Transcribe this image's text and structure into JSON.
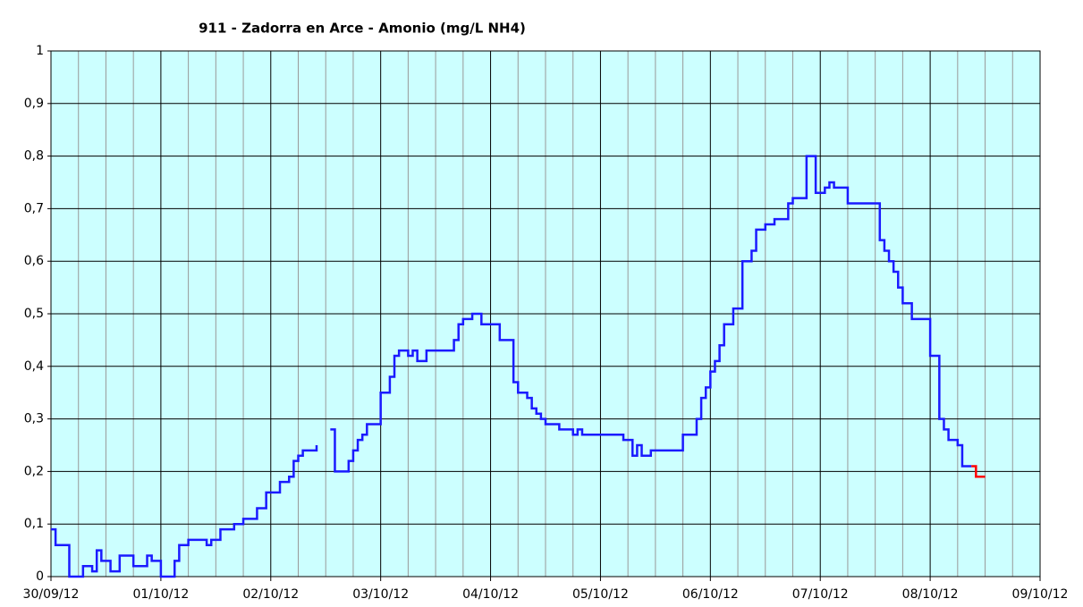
{
  "chart_data": {
    "type": "step",
    "title": "911 - Zadorra en Arce - Amonio (mg/L NH4)",
    "xlim": [
      "2012-09-30 00:00",
      "2012-10-09 00:00"
    ],
    "xticks": [
      {
        "value": "2012-09-30 00:00",
        "label": "30/09/12"
      },
      {
        "value": "2012-10-01 00:00",
        "label": "01/10/12"
      },
      {
        "value": "2012-10-02 00:00",
        "label": "02/10/12"
      },
      {
        "value": "2012-10-03 00:00",
        "label": "03/10/12"
      },
      {
        "value": "2012-10-04 00:00",
        "label": "04/10/12"
      },
      {
        "value": "2012-10-05 00:00",
        "label": "05/10/12"
      },
      {
        "value": "2012-10-06 00:00",
        "label": "06/10/12"
      },
      {
        "value": "2012-10-07 00:00",
        "label": "07/10/12"
      },
      {
        "value": "2012-10-08 00:00",
        "label": "08/10/12"
      },
      {
        "value": "2012-10-09 00:00",
        "label": "09/10/12"
      }
    ],
    "ylim": [
      0,
      1
    ],
    "yticks": [
      0,
      {
        "value": 0.1,
        "label": "0,1"
      },
      {
        "value": 0.2,
        "label": "0,2"
      },
      {
        "value": 0.3,
        "label": "0,3"
      },
      {
        "value": 0.4,
        "label": "0,4"
      },
      {
        "value": 0.5,
        "label": "0,5"
      },
      {
        "value": 0.6,
        "label": "0,6"
      },
      {
        "value": 0.7,
        "label": "0,7"
      },
      {
        "value": 0.8,
        "label": "0,8"
      },
      {
        "value": 0.9,
        "label": "0,9"
      },
      1
    ],
    "grid": true,
    "background": "#ccffff",
    "series": [
      {
        "color": "#1a1aff",
        "x": [
          "2012-09-30 00:00",
          "2012-09-30 01:00",
          "2012-09-30 04:00",
          "2012-09-30 07:00",
          "2012-09-30 09:00",
          "2012-09-30 10:00",
          "2012-09-30 11:00",
          "2012-09-30 13:00",
          "2012-09-30 15:00",
          "2012-09-30 18:00",
          "2012-09-30 21:00",
          "2012-09-30 22:00",
          "2012-10-01 00:00",
          "2012-10-01 03:00",
          "2012-10-01 04:00",
          "2012-10-01 06:00",
          "2012-10-01 10:00",
          "2012-10-01 11:00",
          "2012-10-01 13:00",
          "2012-10-01 16:00",
          "2012-10-01 18:00",
          "2012-10-01 21:00",
          "2012-10-01 23:00",
          "2012-10-02 02:00",
          "2012-10-02 04:00",
          "2012-10-02 05:00",
          "2012-10-02 06:00",
          "2012-10-02 07:00",
          "2012-10-02 10:00",
          null,
          "2012-10-02 13:00",
          "2012-10-02 14:00",
          "2012-10-02 17:00",
          "2012-10-02 18:00",
          "2012-10-02 19:00",
          "2012-10-02 20:00",
          "2012-10-02 21:00",
          "2012-10-03 00:00",
          "2012-10-03 02:00",
          "2012-10-03 03:00",
          "2012-10-03 04:00",
          "2012-10-03 06:00",
          "2012-10-03 07:00",
          "2012-10-03 08:00",
          "2012-10-03 10:00",
          "2012-10-03 16:00",
          "2012-10-03 17:00",
          "2012-10-03 18:00",
          "2012-10-03 20:00",
          "2012-10-03 22:00",
          "2012-10-04 02:00",
          "2012-10-04 05:00",
          "2012-10-04 06:00",
          "2012-10-04 08:00",
          "2012-10-04 09:00",
          "2012-10-04 10:00",
          "2012-10-04 11:00",
          "2012-10-04 12:00",
          "2012-10-04 15:00",
          "2012-10-04 18:00",
          "2012-10-04 19:00",
          "2012-10-04 20:00",
          "2012-10-05 05:00",
          "2012-10-05 07:00",
          "2012-10-05 08:00",
          "2012-10-05 09:00",
          "2012-10-05 11:00",
          "2012-10-05 18:00",
          "2012-10-05 21:00",
          "2012-10-05 22:00",
          "2012-10-05 23:00",
          "2012-10-06 00:00",
          "2012-10-06 01:00",
          "2012-10-06 02:00",
          "2012-10-06 03:00",
          "2012-10-06 05:00",
          "2012-10-06 07:00",
          "2012-10-06 09:00",
          "2012-10-06 10:00",
          "2012-10-06 12:00",
          "2012-10-06 14:00",
          "2012-10-06 17:00",
          "2012-10-06 18:00",
          "2012-10-06 21:00",
          "2012-10-06 23:00",
          "2012-10-07 01:00",
          "2012-10-07 02:00",
          "2012-10-07 03:00",
          "2012-10-07 06:00",
          "2012-10-07 13:00",
          "2012-10-07 14:00",
          "2012-10-07 15:00",
          "2012-10-07 16:00",
          "2012-10-07 17:00",
          "2012-10-07 18:00",
          "2012-10-07 20:00",
          "2012-10-08 00:00",
          "2012-10-08 02:00",
          "2012-10-08 03:00",
          "2012-10-08 04:00",
          "2012-10-08 06:00",
          "2012-10-08 07:00",
          "2012-10-08 09:00"
        ],
        "values": [
          0.09,
          0.06,
          0,
          0.02,
          0.01,
          0.05,
          0.03,
          0.01,
          0.04,
          0.02,
          0.04,
          0.03,
          0,
          0.03,
          0.06,
          0.07,
          0.06,
          0.07,
          0.09,
          0.1,
          0.11,
          0.13,
          0.16,
          0.18,
          0.19,
          0.22,
          0.23,
          0.24,
          0.25,
          null,
          0.28,
          0.2,
          0.22,
          0.24,
          0.26,
          0.27,
          0.29,
          0.35,
          0.38,
          0.42,
          0.43,
          0.42,
          0.43,
          0.41,
          0.43,
          0.45,
          0.48,
          0.49,
          0.5,
          0.48,
          0.45,
          0.37,
          0.35,
          0.34,
          0.32,
          0.31,
          0.3,
          0.29,
          0.28,
          0.27,
          0.28,
          0.27,
          0.26,
          0.23,
          0.25,
          0.23,
          0.24,
          0.27,
          0.3,
          0.34,
          0.36,
          0.39,
          0.41,
          0.44,
          0.48,
          0.51,
          0.6,
          0.62,
          0.66,
          0.67,
          0.68,
          0.71,
          0.72,
          0.8,
          0.73,
          0.74,
          0.75,
          0.74,
          0.71,
          0.64,
          0.62,
          0.6,
          0.58,
          0.55,
          0.52,
          0.49,
          0.42,
          0.3,
          0.28,
          0.26,
          0.25,
          0.21,
          0.21
        ]
      },
      {
        "color": "#ff0000",
        "x": [
          "2012-10-08 09:00",
          "2012-10-08 10:00",
          "2012-10-08 12:00"
        ],
        "values": [
          0.21,
          0.19,
          0.19
        ]
      }
    ]
  }
}
